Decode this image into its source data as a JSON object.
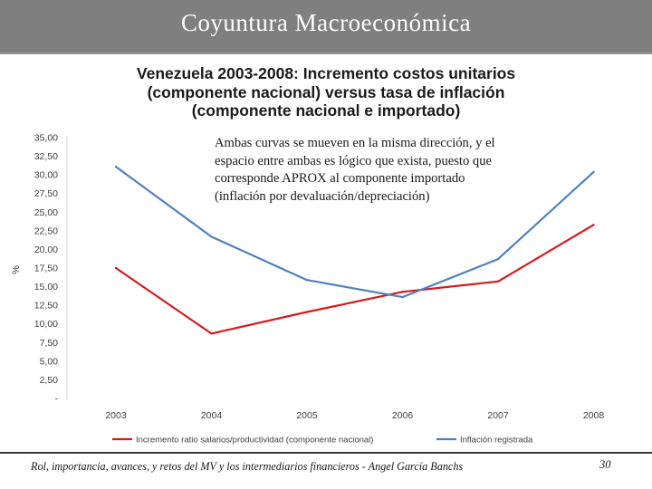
{
  "slide": {
    "header_title": "Coyuntura Macroeconómica",
    "footer_text": "Rol, importancia, avances, y retos del MV y los intermediarios financieros - Angel García Banchs",
    "page_number": "30",
    "header_color": "#7f7f7f"
  },
  "chart_data": {
    "type": "line",
    "title_lines": [
      "Venezuela 2003-2008: Incremento costos unitarios",
      "(componente nacional) versus tasa de inflación",
      "(componente nacional e importado)"
    ],
    "annotation_lines": [
      "Ambas curvas se mueven en la misma dirección, y el",
      "espacio entre ambas es lógico que exista, puesto que",
      "corresponde APROX al componente importado",
      "(inflación por devaluación/depreciación)"
    ],
    "ylabel": "%",
    "xlabel": "",
    "ylim": [
      0,
      35
    ],
    "grid": false,
    "legend_position": "bottom",
    "y_ticks": [
      "-",
      "2,50",
      "5,00",
      "7,50",
      "10,00",
      "12,50",
      "15,00",
      "17,50",
      "20,00",
      "22,50",
      "25,00",
      "27,50",
      "30,00",
      "32,50",
      "35,00"
    ],
    "categories": [
      "2003",
      "2004",
      "2005",
      "2006",
      "2007",
      "2008"
    ],
    "series": [
      {
        "name": "Incremento ratio salarios/productividad (componente nacional)",
        "color": "#d7191c",
        "values": [
          17.5,
          8.7,
          11.6,
          14.3,
          15.7,
          23.3
        ]
      },
      {
        "name": "Inflación registrada",
        "color": "#4f81bd",
        "values": [
          31.1,
          21.7,
          15.9,
          13.6,
          18.7,
          30.4
        ]
      }
    ]
  }
}
